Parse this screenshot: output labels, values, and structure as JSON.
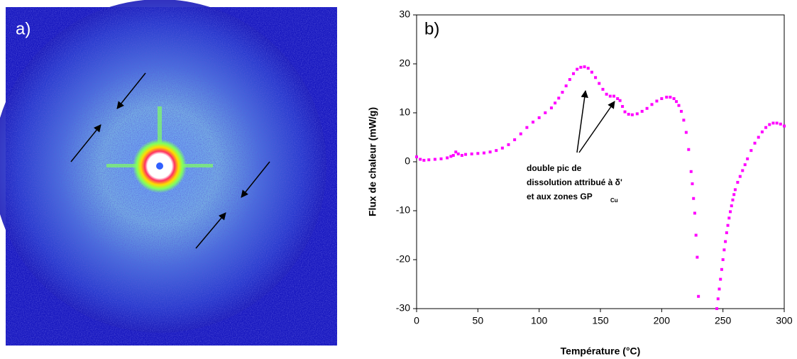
{
  "panel_a": {
    "label": "a)"
  },
  "chart_data": {
    "type": "scatter",
    "label": "b)",
    "x_label": "Température (°C)",
    "y_label": "Flux de chaleur (mW/g)",
    "annotation": {
      "lines": [
        "double pic de",
        "dissolution attribué à δ'",
        "et aux zones GP"
      ],
      "subscript": "Cu"
    },
    "color": "#ff00ff",
    "x": [
      0,
      3,
      6,
      10,
      15,
      20,
      25,
      28,
      30,
      32,
      34,
      37,
      40,
      45,
      50,
      55,
      60,
      65,
      70,
      75,
      80,
      85,
      90,
      95,
      100,
      105,
      110,
      113,
      116,
      119,
      122,
      125,
      128,
      131,
      134,
      137,
      140,
      143,
      146,
      149,
      152,
      155,
      158,
      161,
      164,
      166,
      168,
      170,
      173,
      176,
      180,
      184,
      188,
      192,
      196,
      200,
      204,
      207,
      210,
      212,
      214,
      216,
      218,
      220,
      222,
      224,
      225,
      226,
      227,
      228,
      229,
      230,
      245,
      246,
      247,
      248,
      249,
      250,
      251,
      252,
      253,
      254,
      255,
      256,
      257,
      258,
      259,
      260,
      262,
      264,
      266,
      268,
      270,
      273,
      276,
      279,
      282,
      285,
      288,
      291,
      294,
      297,
      300
    ],
    "values": [
      1,
      0.5,
      0.3,
      0.4,
      0.5,
      0.6,
      0.8,
      1.1,
      1.3,
      2,
      1.6,
      1.3,
      1.5,
      1.6,
      1.7,
      1.8,
      2,
      2.3,
      2.8,
      3.5,
      4.5,
      5.7,
      7,
      8.1,
      9,
      10,
      11,
      12,
      13,
      14.2,
      15.5,
      16.8,
      18,
      18.9,
      19.3,
      19.4,
      19.1,
      18.3,
      17.2,
      16,
      14.8,
      13.8,
      13.4,
      13.4,
      12.9,
      12.5,
      11.3,
      10.2,
      9.7,
      9.6,
      9.8,
      10.3,
      10.9,
      11.7,
      12.4,
      12.9,
      13.2,
      13.2,
      12.9,
      12.3,
      11.5,
      10.3,
      8.5,
      6,
      2.5,
      -2,
      -4.5,
      -7.5,
      -10.5,
      -15,
      -19.5,
      -27.5,
      -30,
      -28,
      -26,
      -24,
      -22,
      -20,
      -18,
      -16.3,
      -14.5,
      -13,
      -11.5,
      -10.2,
      -9,
      -7.8,
      -6.7,
      -5.7,
      -4.2,
      -3,
      -1.8,
      -0.6,
      0.6,
      2.3,
      3.8,
      5,
      6.1,
      7,
      7.6,
      7.9,
      7.9,
      7.7,
      7.3
    ],
    "xlim": [
      0,
      300
    ],
    "ylim": [
      -30,
      30
    ],
    "xticks": [
      0,
      50,
      100,
      150,
      200,
      250,
      300
    ],
    "yticks": [
      -30,
      -20,
      -10,
      0,
      10,
      20,
      30
    ]
  }
}
